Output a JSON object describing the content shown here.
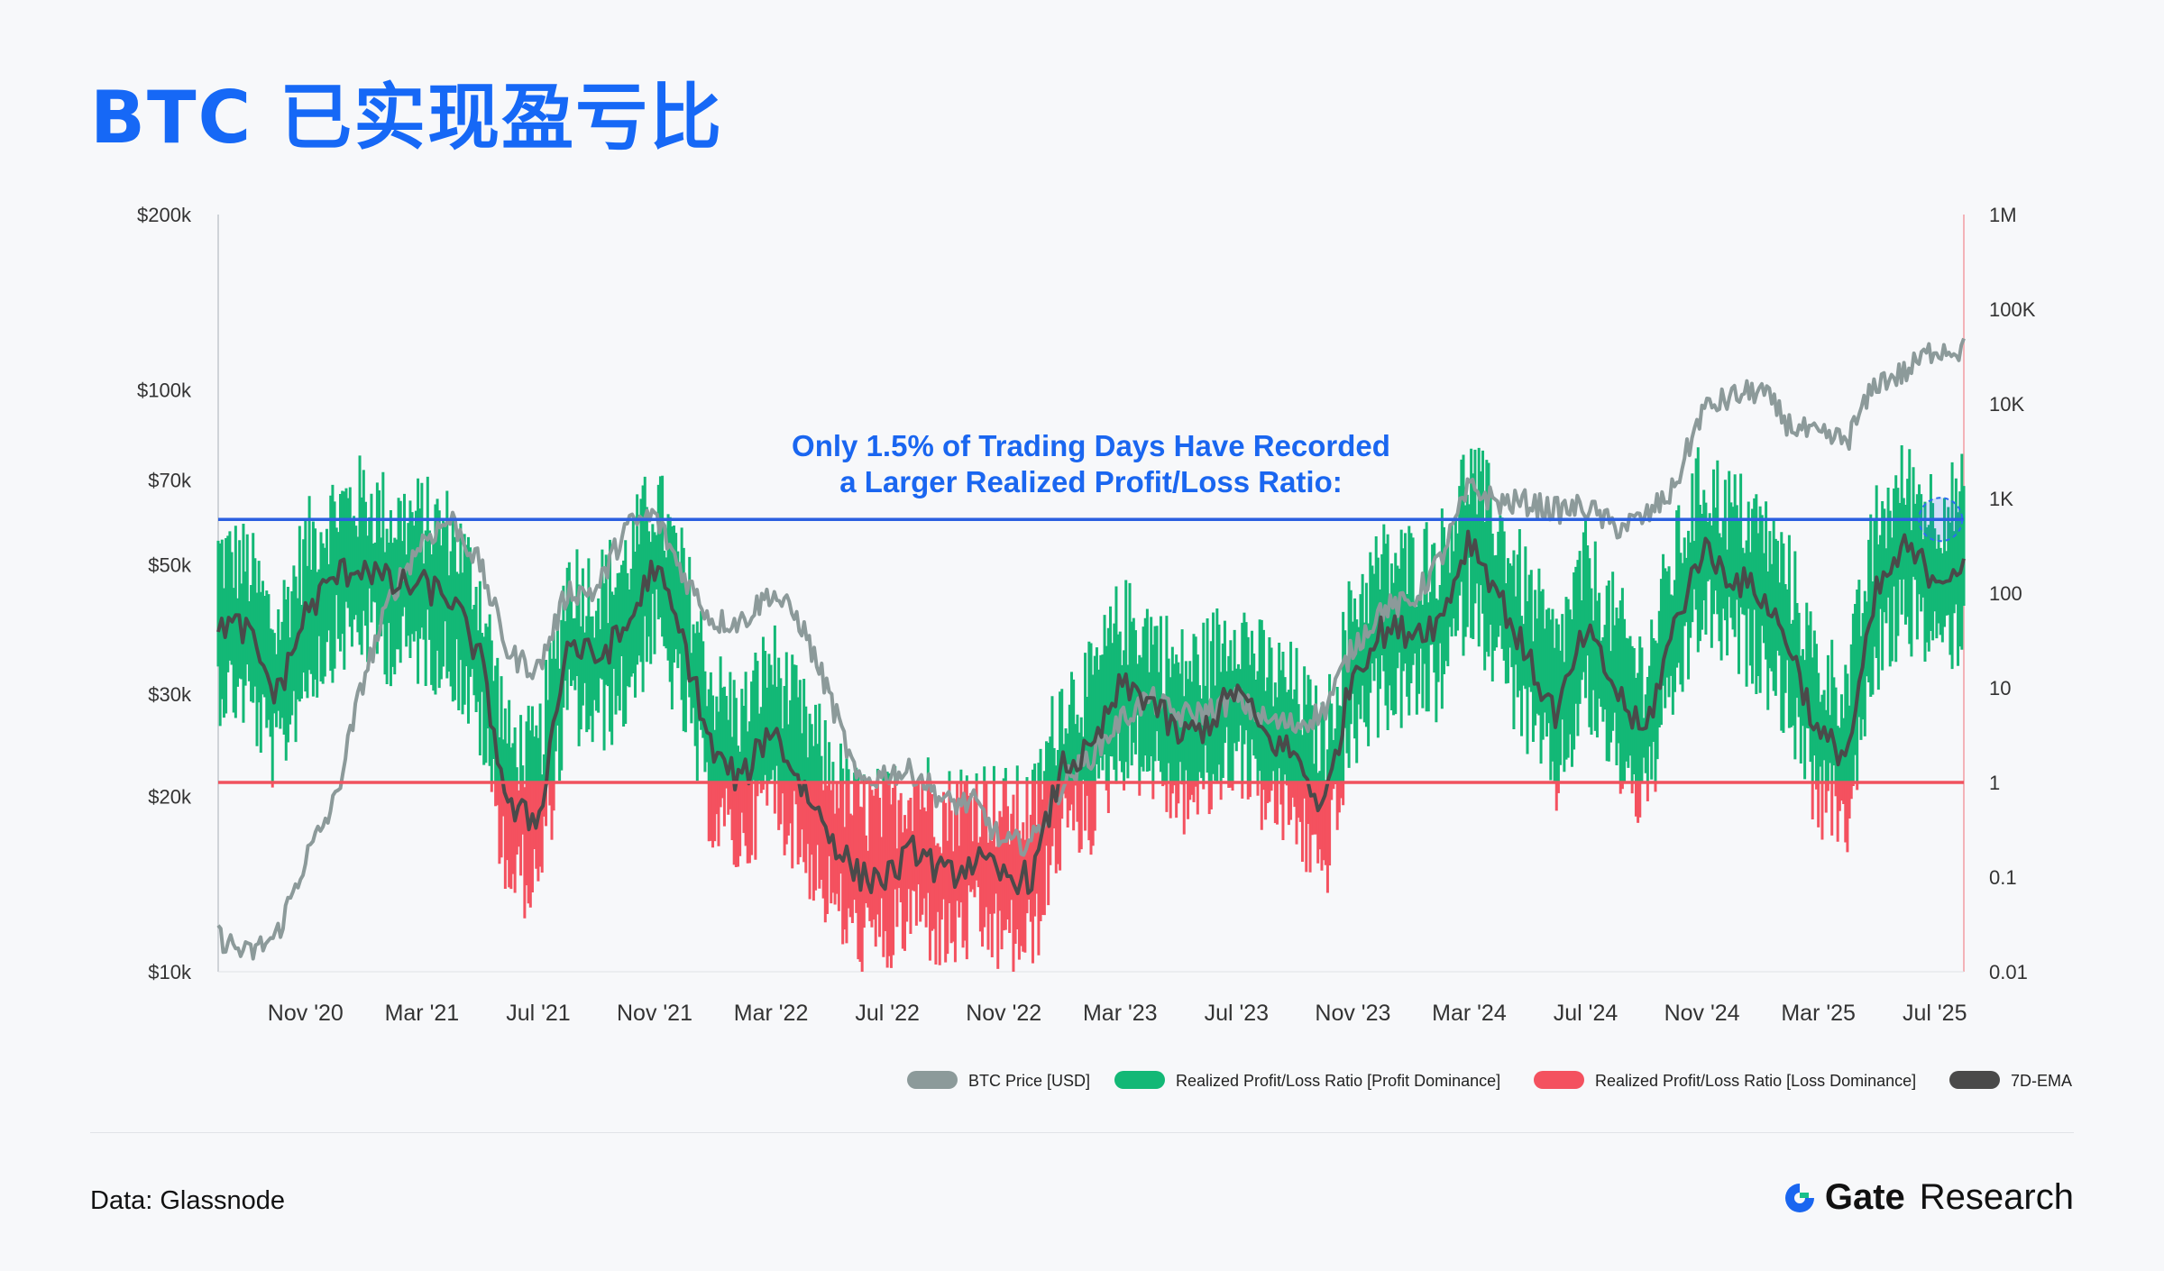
{
  "title": "BTC 已实现盈亏比",
  "footer": {
    "source": "Data: Glassnode",
    "brand_name": "Gate",
    "brand_suffix": "Research"
  },
  "colors": {
    "title": "#1668f6",
    "btc_price": "#8c9a9a",
    "profit": "#13b876",
    "loss": "#f4515f",
    "ema": "#4a4a4a",
    "high_line": "#2b5fe0",
    "one_line": "#f0525e",
    "highlight": "#2b6cf0"
  },
  "chart_data": {
    "type": "line",
    "annotation": [
      "Only 1.5% of Trading Days Have Recorded",
      "a Larger Realized Profit/Loss Ratio:"
    ],
    "left_axis": {
      "scale": "log",
      "ticks": [
        "$200k",
        "$100k",
        "$70k",
        "$50k",
        "$30k",
        "$20k",
        "$10k"
      ],
      "tick_values": [
        200000,
        100000,
        70000,
        50000,
        30000,
        20000,
        10000
      ],
      "ylim": [
        10000,
        200000
      ]
    },
    "right_axis": {
      "scale": "log",
      "ticks": [
        "1M",
        "100K",
        "10K",
        "1K",
        "100",
        "10",
        "1",
        "0.1",
        "0.01"
      ],
      "tick_values": [
        1000000,
        100000,
        10000,
        1000,
        100,
        10,
        1,
        0.1,
        0.01
      ],
      "ylim": [
        0.01,
        1000000
      ]
    },
    "x_ticks": [
      "Nov '20",
      "Mar '21",
      "Jul '21",
      "Nov '21",
      "Mar '22",
      "Jul '22",
      "Nov '22",
      "Mar '23",
      "Jul '23",
      "Nov '23",
      "Mar '24",
      "Jul '24",
      "Nov '24",
      "Mar '25",
      "Jul '25"
    ],
    "x_range": [
      "2020-08",
      "2025-08"
    ],
    "reference_lines": [
      {
        "axis": "right",
        "value": 600,
        "color": "#2b5fe0"
      },
      {
        "axis": "right",
        "value": 1,
        "color": "#f0525e"
      }
    ],
    "legend": [
      "BTC Price [USD]",
      "Realized Profit/Loss Ratio [Profit Dominance]",
      "Realized Profit/Loss Ratio [Loss Dominance]",
      "7D-EMA"
    ],
    "legend_placement": "bottom-right",
    "series": [
      {
        "name": "BTC Price [USD]",
        "axis": "left",
        "x": [
          "2020-08",
          "2020-09",
          "2020-10",
          "2020-11",
          "2020-12",
          "2021-01",
          "2021-02",
          "2021-03",
          "2021-04",
          "2021-05",
          "2021-06",
          "2021-07",
          "2021-08",
          "2021-09",
          "2021-10",
          "2021-11",
          "2021-12",
          "2022-01",
          "2022-02",
          "2022-03",
          "2022-04",
          "2022-05",
          "2022-06",
          "2022-07",
          "2022-08",
          "2022-09",
          "2022-10",
          "2022-11",
          "2022-12",
          "2023-01",
          "2023-02",
          "2023-03",
          "2023-04",
          "2023-05",
          "2023-06",
          "2023-07",
          "2023-08",
          "2023-09",
          "2023-10",
          "2023-11",
          "2023-12",
          "2024-01",
          "2024-02",
          "2024-03",
          "2024-04",
          "2024-05",
          "2024-06",
          "2024-07",
          "2024-08",
          "2024-09",
          "2024-10",
          "2024-11",
          "2024-12",
          "2025-01",
          "2025-02",
          "2025-03",
          "2025-04",
          "2025-05",
          "2025-06",
          "2025-07",
          "2025-08"
        ],
        "values": [
          11500,
          10700,
          11500,
          15600,
          19500,
          32000,
          45000,
          55000,
          60000,
          50000,
          35000,
          33000,
          45000,
          45000,
          58000,
          61000,
          48000,
          40000,
          40000,
          45000,
          40000,
          30000,
          21000,
          22000,
          22000,
          19500,
          19500,
          16500,
          16800,
          21000,
          23500,
          27000,
          29500,
          27500,
          28000,
          29500,
          27000,
          26500,
          28000,
          36000,
          42000,
          43000,
          51000,
          68000,
          64000,
          64000,
          62000,
          63000,
          58000,
          60000,
          67000,
          92000,
          97000,
          100000,
          87000,
          83000,
          82000,
          103000,
          107000,
          118000,
          117000
        ]
      },
      {
        "name": "7D-EMA",
        "axis": "right",
        "x": [
          "2020-08",
          "2020-09",
          "2020-10",
          "2020-11",
          "2020-12",
          "2021-01",
          "2021-02",
          "2021-03",
          "2021-04",
          "2021-05",
          "2021-06",
          "2021-07",
          "2021-08",
          "2021-09",
          "2021-10",
          "2021-11",
          "2021-12",
          "2022-01",
          "2022-02",
          "2022-03",
          "2022-04",
          "2022-05",
          "2022-06",
          "2022-07",
          "2022-08",
          "2022-09",
          "2022-10",
          "2022-11",
          "2022-12",
          "2023-01",
          "2023-02",
          "2023-03",
          "2023-04",
          "2023-05",
          "2023-06",
          "2023-07",
          "2023-08",
          "2023-09",
          "2023-10",
          "2023-11",
          "2023-12",
          "2024-01",
          "2024-02",
          "2024-03",
          "2024-04",
          "2024-05",
          "2024-06",
          "2024-07",
          "2024-08",
          "2024-09",
          "2024-10",
          "2024-11",
          "2024-12",
          "2025-01",
          "2025-02",
          "2025-03",
          "2025-04",
          "2025-05",
          "2025-06",
          "2025-07",
          "2025-08"
        ],
        "values": [
          50,
          40,
          8,
          60,
          150,
          200,
          120,
          120,
          90,
          20,
          0.5,
          0.4,
          30,
          20,
          40,
          200,
          30,
          2,
          1,
          4,
          1,
          0.3,
          0.1,
          0.1,
          0.2,
          0.1,
          0.15,
          0.1,
          0.1,
          1.5,
          2,
          10,
          8,
          3,
          4,
          10,
          3,
          2,
          0.5,
          15,
          40,
          40,
          50,
          400,
          100,
          20,
          5,
          40,
          10,
          3,
          40,
          300,
          150,
          100,
          30,
          3,
          2,
          100,
          300,
          150,
          200
        ]
      }
    ]
  }
}
